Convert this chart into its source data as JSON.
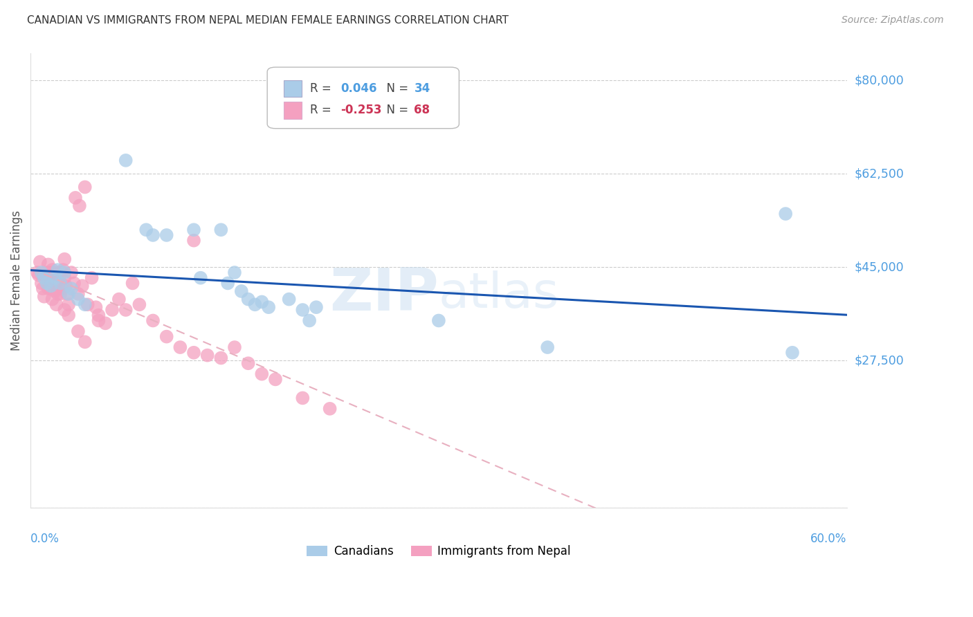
{
  "title": "CANADIAN VS IMMIGRANTS FROM NEPAL MEDIAN FEMALE EARNINGS CORRELATION CHART",
  "source": "Source: ZipAtlas.com",
  "ylabel": "Median Female Earnings",
  "y_ticks": [
    0,
    27500,
    45000,
    62500,
    80000
  ],
  "x_range": [
    0.0,
    0.6
  ],
  "y_range": [
    0,
    85000
  ],
  "canadian_R": 0.046,
  "canadian_N": 34,
  "nepal_R": -0.253,
  "nepal_N": 68,
  "watermark_zip": "ZIP",
  "watermark_atlas": "atlas",
  "canadians_color": "#aacce8",
  "nepal_color": "#f4a0c0",
  "canadian_line_color": "#1a56b0",
  "nepal_line_color": "#e8b0c0",
  "grid_color": "#cccccc",
  "title_color": "#333333",
  "axis_label_color": "#4d9de0",
  "legend_label1": "Canadians",
  "legend_label2": "Immigrants from Nepal",
  "canadian_x": [
    0.008,
    0.01,
    0.012,
    0.015,
    0.018,
    0.02,
    0.022,
    0.025,
    0.028,
    0.03,
    0.035,
    0.04,
    0.07,
    0.085,
    0.09,
    0.1,
    0.12,
    0.125,
    0.14,
    0.145,
    0.15,
    0.155,
    0.16,
    0.165,
    0.17,
    0.175,
    0.19,
    0.2,
    0.205,
    0.21,
    0.3,
    0.38,
    0.555,
    0.56
  ],
  "canadian_y": [
    44000,
    43000,
    42000,
    41500,
    43000,
    44500,
    42000,
    44000,
    40000,
    41000,
    39000,
    38000,
    65000,
    52000,
    51000,
    51000,
    52000,
    43000,
    52000,
    42000,
    44000,
    40500,
    39000,
    38000,
    38500,
    37500,
    39000,
    37000,
    35000,
    37500,
    35000,
    30000,
    55000,
    29000
  ],
  "nepal_x": [
    0.005,
    0.006,
    0.007,
    0.008,
    0.009,
    0.01,
    0.01,
    0.011,
    0.012,
    0.013,
    0.013,
    0.014,
    0.015,
    0.015,
    0.016,
    0.016,
    0.017,
    0.018,
    0.018,
    0.019,
    0.02,
    0.02,
    0.021,
    0.022,
    0.022,
    0.023,
    0.023,
    0.024,
    0.025,
    0.025,
    0.026,
    0.027,
    0.028,
    0.03,
    0.032,
    0.033,
    0.035,
    0.036,
    0.038,
    0.04,
    0.042,
    0.045,
    0.048,
    0.05,
    0.055,
    0.06,
    0.065,
    0.07,
    0.075,
    0.08,
    0.09,
    0.1,
    0.11,
    0.12,
    0.13,
    0.14,
    0.15,
    0.16,
    0.17,
    0.18,
    0.2,
    0.22,
    0.12,
    0.025,
    0.028,
    0.05,
    0.035,
    0.04
  ],
  "nepal_y": [
    44000,
    43500,
    46000,
    42000,
    41000,
    43500,
    39500,
    44000,
    43000,
    45500,
    41000,
    44000,
    43000,
    41000,
    44500,
    39000,
    44000,
    42000,
    40500,
    38000,
    43500,
    40000,
    44000,
    42000,
    40000,
    44000,
    41000,
    44500,
    46500,
    43000,
    41500,
    40000,
    38000,
    44000,
    42000,
    58000,
    40000,
    56500,
    41500,
    60000,
    38000,
    43000,
    37500,
    36000,
    34500,
    37000,
    39000,
    37000,
    42000,
    38000,
    35000,
    32000,
    30000,
    29000,
    28500,
    28000,
    30000,
    27000,
    25000,
    24000,
    20500,
    18500,
    50000,
    37000,
    36000,
    35000,
    33000,
    31000
  ]
}
